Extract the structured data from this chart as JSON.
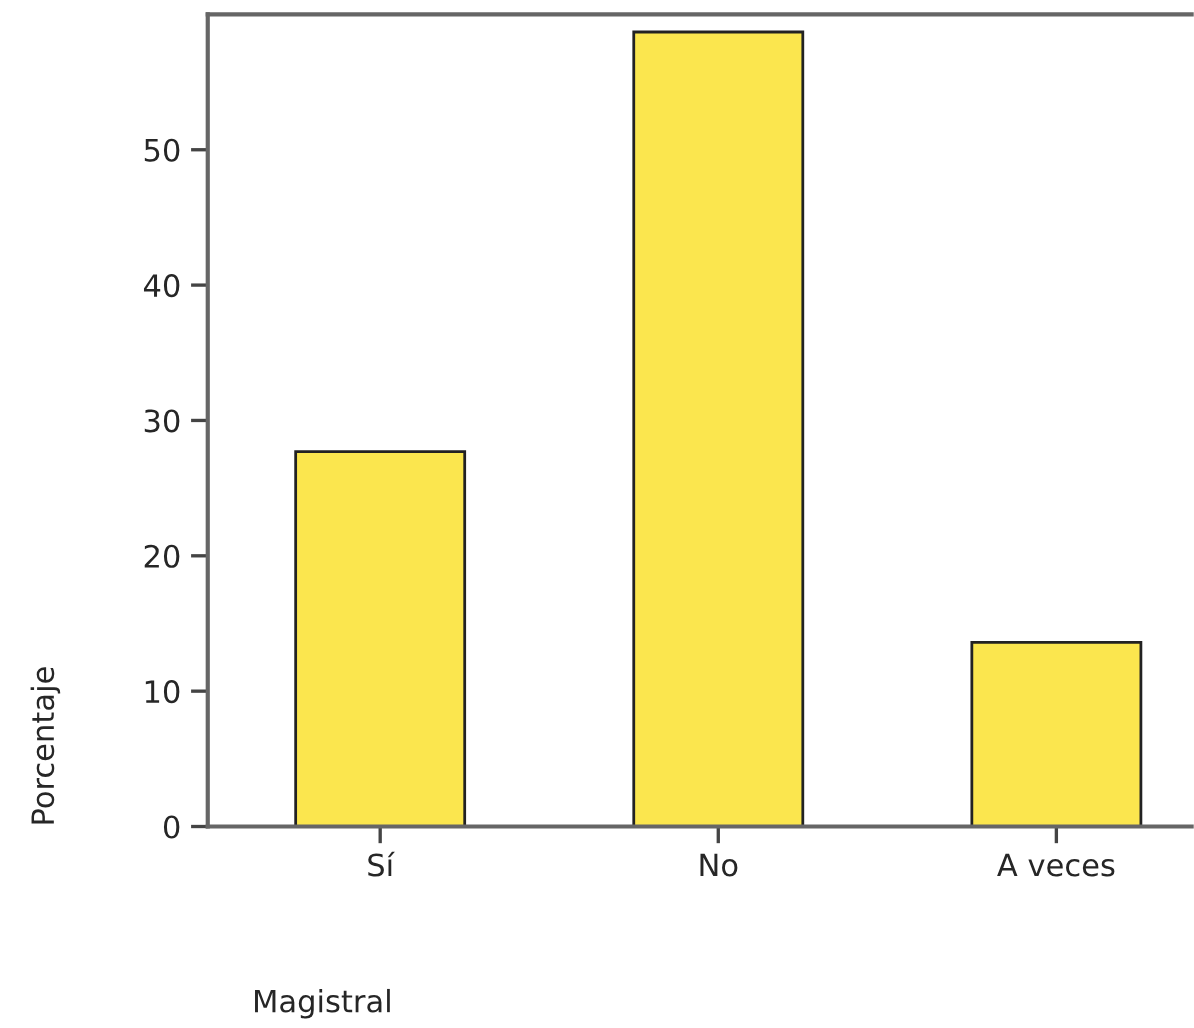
{
  "chart_data": {
    "type": "bar",
    "xlabel": "Magistral",
    "ylabel": "Porcentaje",
    "categories": [
      "Sí",
      "No",
      "A veces"
    ],
    "values": [
      27.7,
      58.7,
      13.6
    ],
    "color": "#fbe64e",
    "ylim": [
      0,
      60
    ],
    "yticks": [
      0,
      10,
      20,
      30,
      40,
      50
    ],
    "grid": false
  }
}
